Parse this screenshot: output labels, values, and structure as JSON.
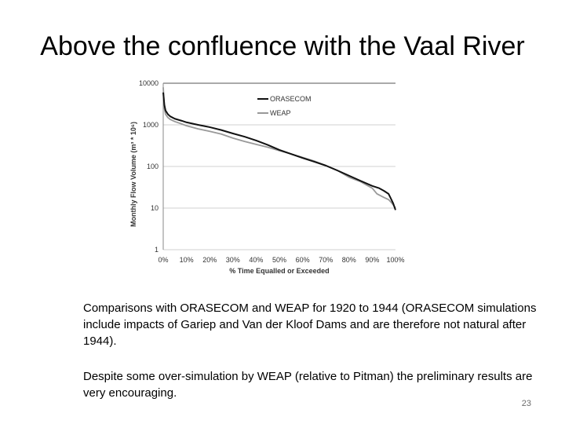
{
  "slide": {
    "title": "Above the confluence with the Vaal River",
    "caption_1": "Comparisons with ORASECOM and WEAP for 1920 to 1944 (ORASECOM simulations include impacts of Gariep and Van der Kloof Dams and are therefore not natural after 1944).",
    "caption_2": "Despite some over-simulation by WEAP (relative to Pitman) the preliminary results are very encouraging.",
    "page_number": "23"
  },
  "chart_data": {
    "type": "line",
    "xlabel": "% Time Equalled or Exceeded",
    "ylabel": "Monthly Flow Volume (m³ * 10⁶)",
    "xlim": [
      0,
      100
    ],
    "ylim": [
      1,
      10000
    ],
    "yscale": "log",
    "grid": true,
    "legend_position": "top-right",
    "x_ticks": [
      "0%",
      "10%",
      "20%",
      "30%",
      "40%",
      "50%",
      "60%",
      "70%",
      "80%",
      "90%",
      "100%"
    ],
    "y_ticks": [
      "1",
      "10",
      "100",
      "1000",
      "10000"
    ],
    "y_tick_values": [
      1,
      10,
      100,
      1000,
      10000
    ],
    "series": [
      {
        "name": "ORASECOM",
        "color": "#111111",
        "x": [
          0,
          0.5,
          1,
          2,
          3,
          5,
          8,
          10,
          15,
          20,
          25,
          30,
          35,
          40,
          45,
          50,
          55,
          60,
          65,
          70,
          75,
          80,
          85,
          90,
          93,
          95,
          97,
          98,
          99,
          100
        ],
        "y": [
          6000,
          3000,
          2200,
          1800,
          1600,
          1400,
          1250,
          1150,
          1000,
          880,
          750,
          620,
          520,
          420,
          330,
          250,
          200,
          160,
          130,
          105,
          80,
          60,
          45,
          34,
          30,
          26,
          22,
          17,
          13,
          9
        ]
      },
      {
        "name": "WEAP",
        "color": "#999999",
        "x": [
          0,
          0.5,
          1,
          2,
          3,
          5,
          8,
          10,
          15,
          20,
          25,
          30,
          35,
          40,
          45,
          50,
          55,
          60,
          65,
          70,
          75,
          80,
          85,
          90,
          92,
          95,
          97,
          98,
          99,
          100
        ],
        "y": [
          8000,
          2500,
          1800,
          1500,
          1350,
          1200,
          1050,
          950,
          800,
          700,
          600,
          480,
          400,
          340,
          290,
          240,
          200,
          165,
          135,
          105,
          80,
          55,
          43,
          30,
          22,
          18,
          16,
          14,
          12,
          10
        ]
      }
    ]
  }
}
